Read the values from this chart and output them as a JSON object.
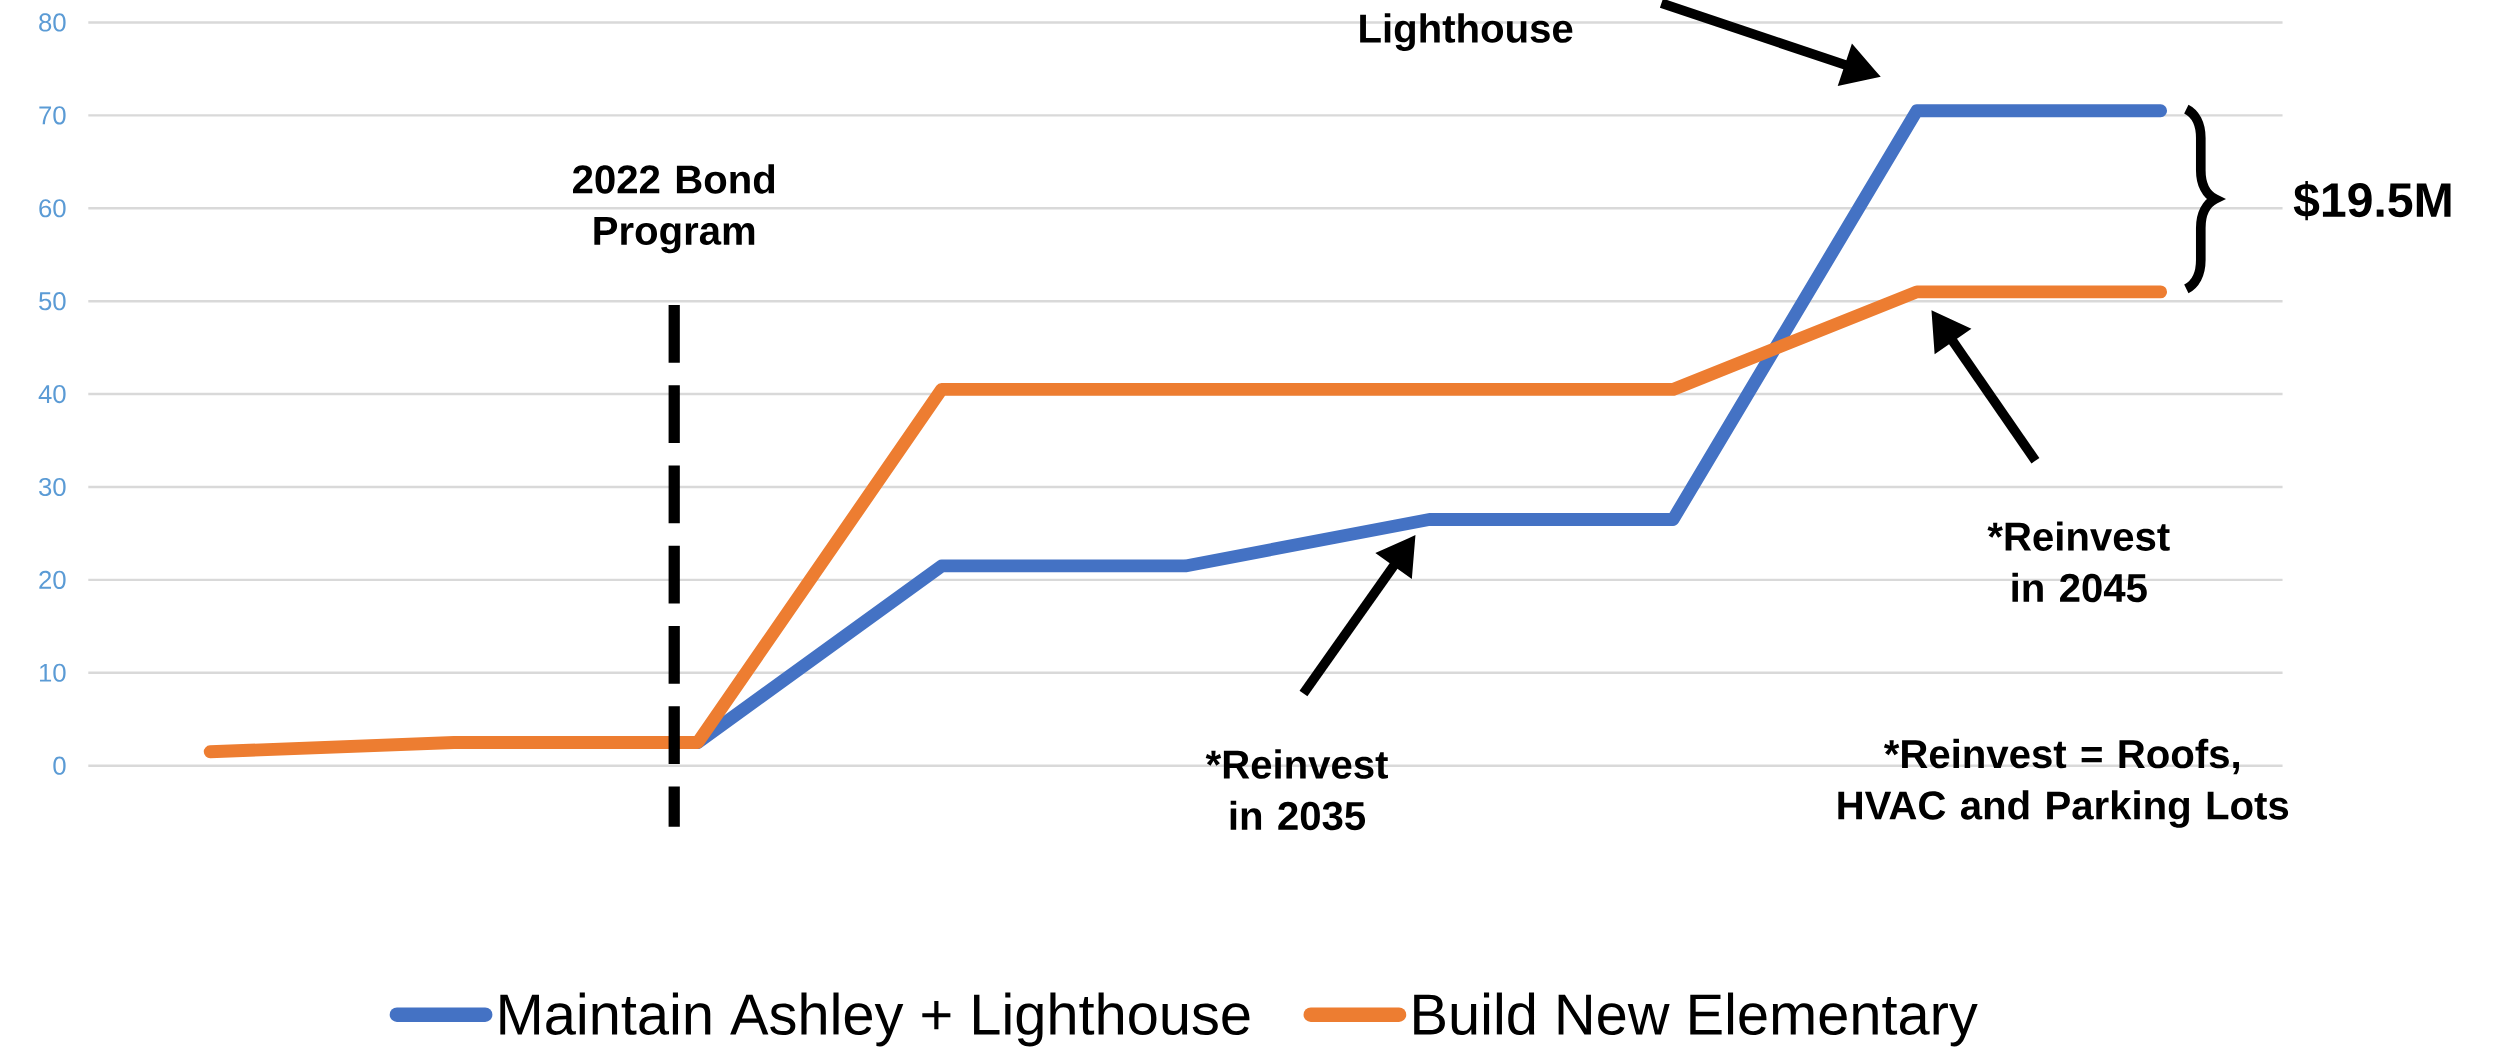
{
  "chart_data": {
    "type": "line",
    "categories": [
      null,
      null,
      null,
      null,
      null,
      null,
      null,
      null,
      null
    ],
    "series": [
      {
        "name": "Maintain Ashley + Lighthouse",
        "color": "#4472c4",
        "values": [
          null,
          null,
          2.5,
          21.5,
          21.5,
          26.5,
          26.5,
          70.5,
          70.5
        ]
      },
      {
        "name": "Build New Elementary",
        "color": "#ed7d31",
        "values": [
          1.5,
          2.5,
          2.5,
          40.5,
          40.5,
          40.5,
          40.5,
          51,
          51
        ]
      }
    ],
    "ylim": [
      0,
      80
    ],
    "yticks": [
      0,
      10,
      20,
      30,
      40,
      50,
      60,
      70,
      80
    ],
    "grid": "y",
    "legend": "bottom",
    "tick_labels": "y",
    "line_style": "solid",
    "annotations": [
      "Lighthouse",
      "*Reinvest in 2035",
      "*Reinvest in 2045",
      "*Reinvest = Roofs, HVAC and Parking Lots",
      "$19.5M",
      "2022 Bond Program"
    ]
  }
}
